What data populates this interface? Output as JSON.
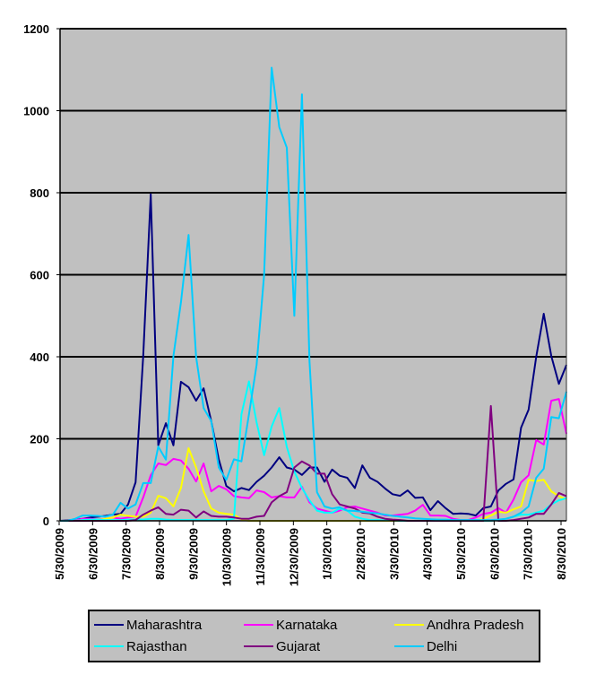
{
  "chart_data": {
    "type": "line",
    "title": "",
    "xlabel": "",
    "ylabel": "",
    "ylim": [
      0,
      1200
    ],
    "y_ticks": [
      "0",
      "200",
      "400",
      "600",
      "800",
      "1000",
      "1200"
    ],
    "x_tick_labels": [
      "5/30/2009",
      "6/30/2009",
      "7/30/2009",
      "8/30/2009",
      "9/30/2009",
      "10/30/2009",
      "11/30/2009",
      "12/30/2009",
      "1/30/2010",
      "2/28/2010",
      "3/30/2010",
      "4/30/2010",
      "5/30/2010",
      "6/30/2010",
      "7/30/2010",
      "8/30/2010"
    ],
    "grid": "horizontal",
    "legend_position": "bottom",
    "plot_background": "#C0C0C0",
    "series": [
      {
        "name": "Maharashtra",
        "color": "#000080",
        "values": [
          0,
          1,
          3,
          5,
          8,
          10,
          12,
          15,
          17,
          40,
          94,
          402,
          796,
          184,
          238,
          184,
          339,
          326,
          293,
          323,
          243,
          150,
          85,
          72,
          80,
          75,
          95,
          110,
          130,
          155,
          130,
          125,
          112,
          130,
          130,
          95,
          125,
          110,
          105,
          80,
          135,
          105,
          95,
          79,
          65,
          61,
          74,
          56,
          57,
          26,
          48,
          31,
          17,
          18,
          17,
          13,
          31,
          35,
          74,
          90,
          101,
          227,
          271,
          400,
          505,
          402,
          334,
          380
        ]
      },
      {
        "name": "Karnataka",
        "color": "#FF00FF",
        "values": [
          0,
          0,
          2,
          5,
          5,
          3,
          5,
          8,
          5,
          8,
          10,
          57,
          111,
          140,
          136,
          151,
          147,
          127,
          96,
          140,
          72,
          85,
          77,
          60,
          57,
          55,
          74,
          70,
          57,
          60,
          57,
          57,
          83,
          45,
          30,
          25,
          20,
          25,
          33,
          35,
          30,
          25,
          20,
          13,
          13,
          15,
          17,
          25,
          39,
          13,
          13,
          12,
          5,
          2,
          2,
          8,
          17,
          20,
          31,
          20,
          52,
          94,
          111,
          197,
          186,
          293,
          297,
          212
        ]
      },
      {
        "name": "Andhra Pradesh",
        "color": "#FFFF00",
        "values": [
          0,
          0,
          0,
          2,
          2,
          2,
          5,
          8,
          15,
          12,
          10,
          10,
          20,
          61,
          55,
          35,
          80,
          177,
          130,
          72,
          30,
          20,
          17,
          15,
          3,
          0,
          0,
          0,
          0,
          0,
          0,
          0,
          0,
          0,
          0,
          0,
          0,
          0,
          0,
          0,
          0,
          0,
          0,
          0,
          0,
          0,
          0,
          0,
          0,
          0,
          0,
          0,
          0,
          0,
          0,
          0,
          5,
          13,
          22,
          20,
          28,
          35,
          100,
          97,
          100,
          72,
          60,
          52
        ]
      },
      {
        "name": "Rajasthan",
        "color": "#00FFFF",
        "values": [
          0,
          0,
          0,
          2,
          3,
          3,
          2,
          2,
          2,
          3,
          3,
          3,
          5,
          5,
          3,
          2,
          2,
          2,
          2,
          2,
          2,
          2,
          2,
          5,
          260,
          340,
          240,
          160,
          230,
          275,
          180,
          120,
          80,
          50,
          25,
          20,
          20,
          30,
          25,
          10,
          5,
          2,
          2,
          1,
          1,
          0,
          0,
          0,
          0,
          0,
          0,
          0,
          0,
          0,
          0,
          0,
          0,
          0,
          2,
          5,
          10,
          15,
          15,
          20,
          25,
          40,
          50,
          55
        ]
      },
      {
        "name": "Gujarat",
        "color": "#800080",
        "values": [
          0,
          0,
          0,
          0,
          0,
          0,
          0,
          0,
          0,
          0,
          2,
          15,
          25,
          33,
          17,
          15,
          27,
          25,
          8,
          23,
          12,
          10,
          10,
          8,
          5,
          5,
          10,
          12,
          45,
          60,
          70,
          130,
          145,
          135,
          115,
          115,
          65,
          40,
          35,
          30,
          20,
          18,
          10,
          5,
          3,
          2,
          0,
          0,
          0,
          0,
          0,
          0,
          0,
          0,
          0,
          0,
          0,
          280,
          0,
          0,
          2,
          5,
          8,
          17,
          17,
          40,
          68,
          60
        ]
      },
      {
        "name": "Delhi",
        "color": "#00CCFF",
        "values": [
          0,
          0,
          5,
          13,
          13,
          12,
          10,
          15,
          44,
          30,
          40,
          92,
          92,
          181,
          149,
          402,
          533,
          697,
          400,
          275,
          243,
          130,
          100,
          150,
          145,
          260,
          380,
          600,
          1105,
          960,
          910,
          500,
          1040,
          390,
          70,
          35,
          30,
          33,
          25,
          24,
          22,
          20,
          18,
          15,
          12,
          10,
          8,
          6,
          5,
          4,
          3,
          3,
          2,
          2,
          2,
          2,
          2,
          2,
          3,
          5,
          10,
          20,
          35,
          105,
          127,
          253,
          250,
          315
        ]
      }
    ]
  }
}
